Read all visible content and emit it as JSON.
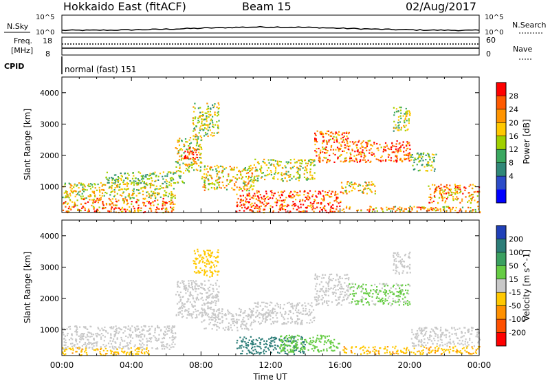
{
  "header": {
    "site": "Hokkaido East (fitACF)",
    "beam": "Beam 15",
    "date": "02/Aug/2017"
  },
  "status_panels": {
    "nsky_label": "N.Sky",
    "nsky_ticks": [
      "10^5",
      "10^0"
    ],
    "nsearch_label": "N.Search",
    "nsearch_ticks": [
      "10^5",
      "10^0"
    ],
    "freq_label_line1": "Freq.",
    "freq_label_line2": "[MHz]",
    "freq_ticks": [
      "18",
      "8"
    ],
    "nave_label": "Nave",
    "nave_ticks": [
      "60",
      "0"
    ],
    "cpid_label": "CPID",
    "cpid_value": "normal (fast) 151"
  },
  "chart_data": [
    {
      "type": "heatmap",
      "panel": "power",
      "title": "",
      "ylabel": "Slant Range [km]",
      "xlabel": "",
      "ylim": [
        180,
        4500
      ],
      "yticks": [
        "1000",
        "2000",
        "3000",
        "4000"
      ],
      "xlim": [
        "00:00",
        "24:00"
      ],
      "colorbar": {
        "label": "Power [dB]",
        "ticks": [
          "28",
          "24",
          "20",
          "16",
          "12",
          "8",
          "4"
        ],
        "colors": [
          "#ff0000",
          "#ff5a00",
          "#ff9400",
          "#ffc800",
          "#a0d000",
          "#3aa860",
          "#308878",
          "#2c4cc8",
          "#0000ff"
        ]
      },
      "regions": [
        {
          "t0": 0.0,
          "t1": 6.5,
          "r0": 200,
          "r1": 650,
          "value": 24
        },
        {
          "t0": 0.0,
          "t1": 6.5,
          "r0": 650,
          "r1": 1150,
          "value": 16
        },
        {
          "t0": 2.5,
          "t1": 7.0,
          "r0": 1100,
          "r1": 1500,
          "value": 12
        },
        {
          "t0": 6.5,
          "t1": 8.0,
          "r0": 1500,
          "r1": 2600,
          "value": 16
        },
        {
          "t0": 7.0,
          "t1": 7.8,
          "r0": 1900,
          "r1": 2300,
          "value": 28
        },
        {
          "t0": 7.5,
          "t1": 9.0,
          "r0": 2600,
          "r1": 3700,
          "value": 14
        },
        {
          "t0": 8.0,
          "t1": 11.0,
          "r0": 900,
          "r1": 1700,
          "value": 18
        },
        {
          "t0": 10.0,
          "t1": 16.0,
          "r0": 200,
          "r1": 900,
          "value": 28
        },
        {
          "t0": 11.0,
          "t1": 14.5,
          "r0": 1200,
          "r1": 1900,
          "value": 16
        },
        {
          "t0": 14.5,
          "t1": 16.5,
          "r0": 1800,
          "r1": 2800,
          "value": 24
        },
        {
          "t0": 16.5,
          "t1": 20.0,
          "r0": 1800,
          "r1": 2500,
          "value": 26
        },
        {
          "t0": 16.0,
          "t1": 18.0,
          "r0": 800,
          "r1": 1200,
          "value": 18
        },
        {
          "t0": 20.0,
          "t1": 21.5,
          "r0": 1500,
          "r1": 2100,
          "value": 12
        },
        {
          "t0": 21.0,
          "t1": 24.0,
          "r0": 500,
          "r1": 1100,
          "value": 22
        },
        {
          "t0": 16.0,
          "t1": 24.0,
          "r0": 200,
          "r1": 400,
          "value": 20
        },
        {
          "t0": 19.0,
          "t1": 20.0,
          "r0": 2800,
          "r1": 3600,
          "value": 14
        }
      ]
    },
    {
      "type": "heatmap",
      "panel": "velocity",
      "title": "",
      "ylabel": "Slant Range [km]",
      "xlabel": "Time UT",
      "ylim": [
        180,
        4500
      ],
      "yticks": [
        "1000",
        "2000",
        "3000",
        "4000"
      ],
      "xlim": [
        "00:00",
        "24:00"
      ],
      "xticks": [
        "00:00",
        "04:00",
        "08:00",
        "12:00",
        "16:00",
        "20:00",
        "00:00"
      ],
      "colorbar": {
        "label": "Velocity [m s^-1]",
        "ticks": [
          "200",
          "100",
          "50",
          "15",
          "-15",
          "-50",
          "-100",
          "-200"
        ],
        "colors": [
          "#2040b8",
          "#2c7d78",
          "#3aa060",
          "#66cc44",
          "#c8c8c8",
          "#ffc800",
          "#ff9000",
          "#ff5000",
          "#ff0000"
        ]
      },
      "regions": [
        {
          "t0": 0.0,
          "t1": 6.5,
          "r0": 400,
          "r1": 1150,
          "value": 0
        },
        {
          "t0": 0.0,
          "t1": 5.0,
          "r0": 200,
          "r1": 450,
          "value": -40
        },
        {
          "t0": 6.5,
          "t1": 9.0,
          "r0": 1400,
          "r1": 2600,
          "value": 0
        },
        {
          "t0": 8.0,
          "t1": 11.0,
          "r0": 1000,
          "r1": 1700,
          "value": 0
        },
        {
          "t0": 10.0,
          "t1": 14.0,
          "r0": 250,
          "r1": 800,
          "value": 150
        },
        {
          "t0": 12.5,
          "t1": 16.0,
          "r0": 300,
          "r1": 850,
          "value": 30
        },
        {
          "t0": 11.0,
          "t1": 14.5,
          "r0": 1200,
          "r1": 1900,
          "value": 0
        },
        {
          "t0": 14.5,
          "t1": 16.5,
          "r0": 1800,
          "r1": 2800,
          "value": 0
        },
        {
          "t0": 16.5,
          "t1": 20.0,
          "r0": 1800,
          "r1": 2500,
          "value": 20
        },
        {
          "t0": 16.0,
          "t1": 24.0,
          "r0": 250,
          "r1": 500,
          "value": -40
        },
        {
          "t0": 20.0,
          "t1": 24.0,
          "r0": 500,
          "r1": 1100,
          "value": 0
        },
        {
          "t0": 7.5,
          "t1": 9.0,
          "r0": 2700,
          "r1": 3600,
          "value": -30
        },
        {
          "t0": 19.0,
          "t1": 20.0,
          "r0": 2800,
          "r1": 3500,
          "value": 0
        }
      ]
    }
  ]
}
